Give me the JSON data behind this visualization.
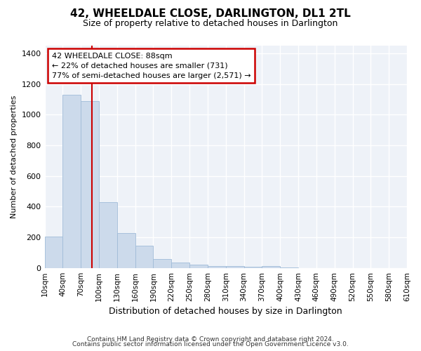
{
  "title": "42, WHEELDALE CLOSE, DARLINGTON, DL1 2TL",
  "subtitle": "Size of property relative to detached houses in Darlington",
  "xlabel": "Distribution of detached houses by size in Darlington",
  "ylabel": "Number of detached properties",
  "bin_edges": [
    10,
    40,
    70,
    100,
    130,
    160,
    190,
    220,
    250,
    280,
    310,
    340,
    370,
    400,
    430,
    460,
    490,
    520,
    550,
    580,
    610
  ],
  "bar_heights": [
    205,
    1130,
    1090,
    430,
    230,
    145,
    60,
    38,
    22,
    12,
    11,
    10,
    15,
    5,
    0,
    0,
    0,
    0,
    0,
    0
  ],
  "bar_color": "#ccdaeb",
  "bar_edge_color": "#a0bcd8",
  "property_size": 88,
  "vline_color": "#cc0000",
  "annotation_text": "42 WHEELDALE CLOSE: 88sqm\n← 22% of detached houses are smaller (731)\n77% of semi-detached houses are larger (2,571) →",
  "annotation_box_color": "#cc0000",
  "ylim": [
    0,
    1450
  ],
  "yticks": [
    0,
    200,
    400,
    600,
    800,
    1000,
    1200,
    1400
  ],
  "footer_line1": "Contains HM Land Registry data © Crown copyright and database right 2024.",
  "footer_line2": "Contains public sector information licensed under the Open Government Licence v3.0.",
  "bg_color": "#eef2f8",
  "grid_color": "#ffffff",
  "tick_labels": [
    "10sqm",
    "40sqm",
    "70sqm",
    "100sqm",
    "130sqm",
    "160sqm",
    "190sqm",
    "220sqm",
    "250sqm",
    "280sqm",
    "310sqm",
    "340sqm",
    "370sqm",
    "400sqm",
    "430sqm",
    "460sqm",
    "490sqm",
    "520sqm",
    "550sqm",
    "580sqm",
    "610sqm"
  ]
}
